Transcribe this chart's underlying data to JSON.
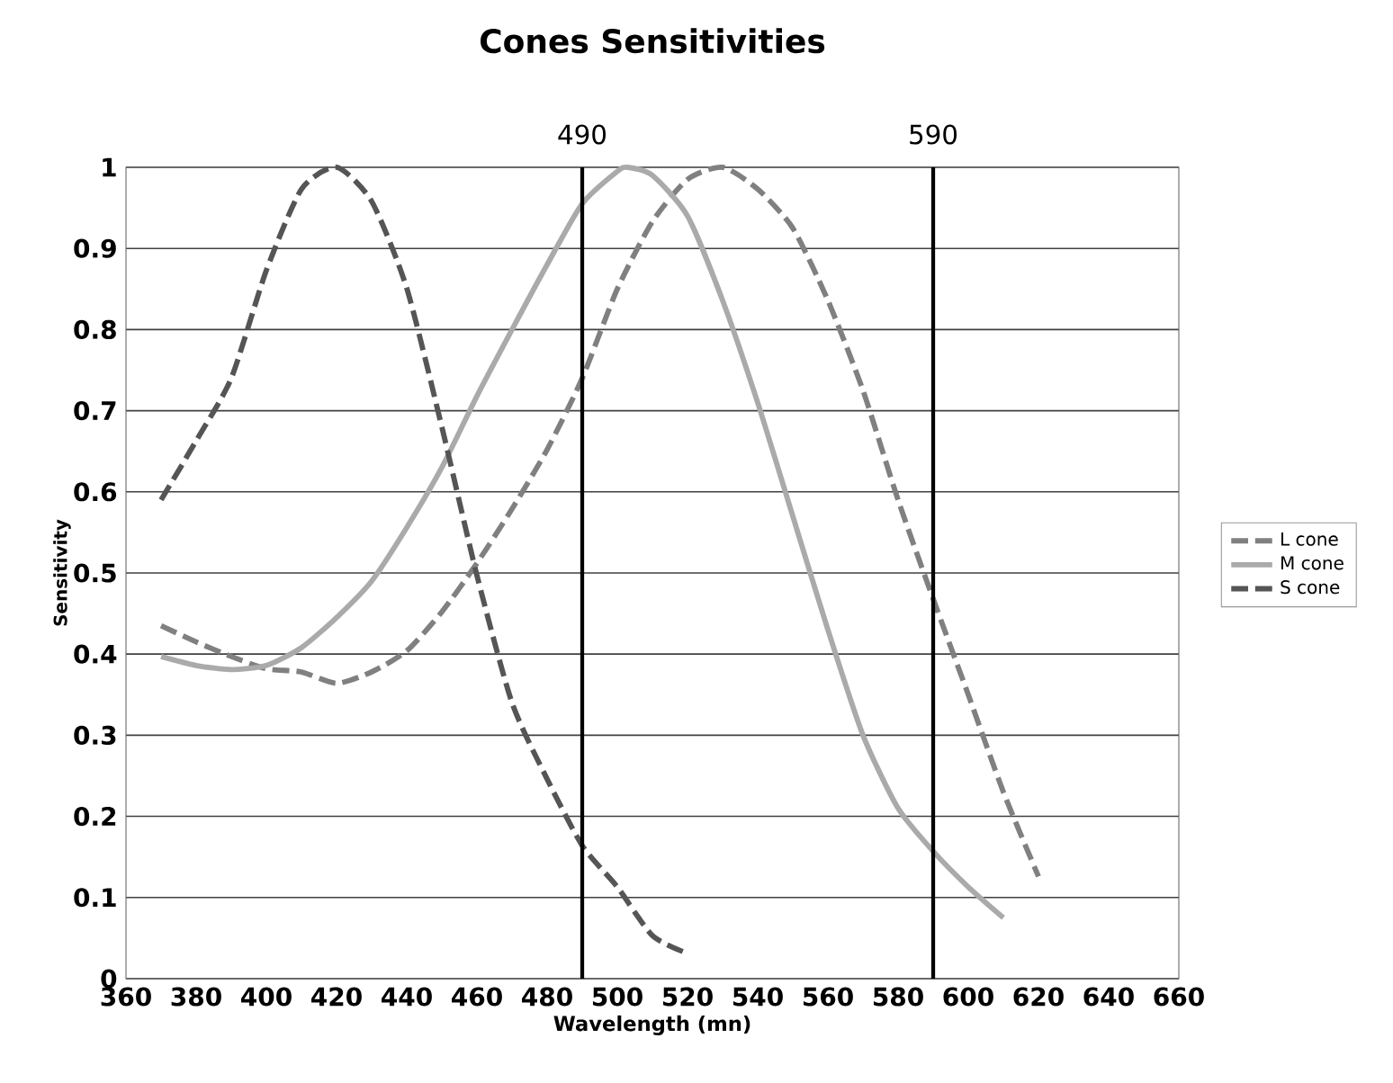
{
  "chart_data": {
    "type": "line",
    "title": "Cones Sensitivities",
    "xlabel": "Wavelength (mn)",
    "ylabel": "Sensitivity",
    "xlim": [
      360,
      660
    ],
    "xticks": [
      360,
      380,
      400,
      420,
      440,
      460,
      480,
      500,
      520,
      540,
      560,
      580,
      600,
      620,
      640,
      660
    ],
    "ylim": [
      0,
      1
    ],
    "yticks": [
      0,
      0.1,
      0.2,
      0.3,
      0.4,
      0.5,
      0.6,
      0.7,
      0.8,
      0.9,
      1
    ],
    "grid": "y",
    "legend": "right",
    "marker": "none",
    "ref_lines": [
      {
        "axis": "x",
        "value": 490,
        "label": "490",
        "color": "#000000"
      },
      {
        "axis": "x",
        "value": 590,
        "label": "590",
        "color": "#000000"
      }
    ],
    "series": [
      {
        "name": "L cone",
        "color": "#808080",
        "line_style": "dashed",
        "x": [
          370,
          380,
          390,
          400,
          410,
          420,
          430,
          440,
          450,
          460,
          470,
          480,
          490,
          500,
          510,
          520,
          530,
          540,
          550,
          560,
          570,
          580,
          590,
          600,
          610,
          620
        ],
        "values": [
          0.435,
          0.415,
          0.397,
          0.382,
          0.378,
          0.364,
          0.378,
          0.404,
          0.452,
          0.512,
          0.579,
          0.652,
          0.74,
          0.85,
          0.933,
          0.985,
          1.0,
          0.973,
          0.925,
          0.836,
          0.725,
          0.59,
          0.468,
          0.35,
          0.23,
          0.126
        ]
      },
      {
        "name": "M cone",
        "color": "#aaaaaa",
        "line_style": "solid",
        "x": [
          370,
          380,
          390,
          400,
          410,
          420,
          430,
          440,
          450,
          460,
          470,
          480,
          490,
          500,
          503,
          510,
          520,
          530,
          540,
          550,
          560,
          570,
          580,
          590,
          600,
          610
        ],
        "values": [
          0.397,
          0.386,
          0.381,
          0.386,
          0.408,
          0.445,
          0.49,
          0.556,
          0.63,
          0.718,
          0.8,
          0.88,
          0.955,
          0.995,
          1.0,
          0.99,
          0.94,
          0.836,
          0.71,
          0.57,
          0.43,
          0.3,
          0.21,
          0.157,
          0.113,
          0.075
        ]
      },
      {
        "name": "S cone",
        "color": "#555555",
        "line_style": "dashed",
        "x": [
          370,
          380,
          390,
          400,
          410,
          420,
          430,
          440,
          450,
          460,
          470,
          480,
          490,
          500,
          510,
          520
        ],
        "values": [
          0.59,
          0.663,
          0.74,
          0.873,
          0.973,
          1.0,
          0.958,
          0.851,
          0.68,
          0.497,
          0.34,
          0.246,
          0.164,
          0.113,
          0.053,
          0.031
        ]
      }
    ]
  }
}
